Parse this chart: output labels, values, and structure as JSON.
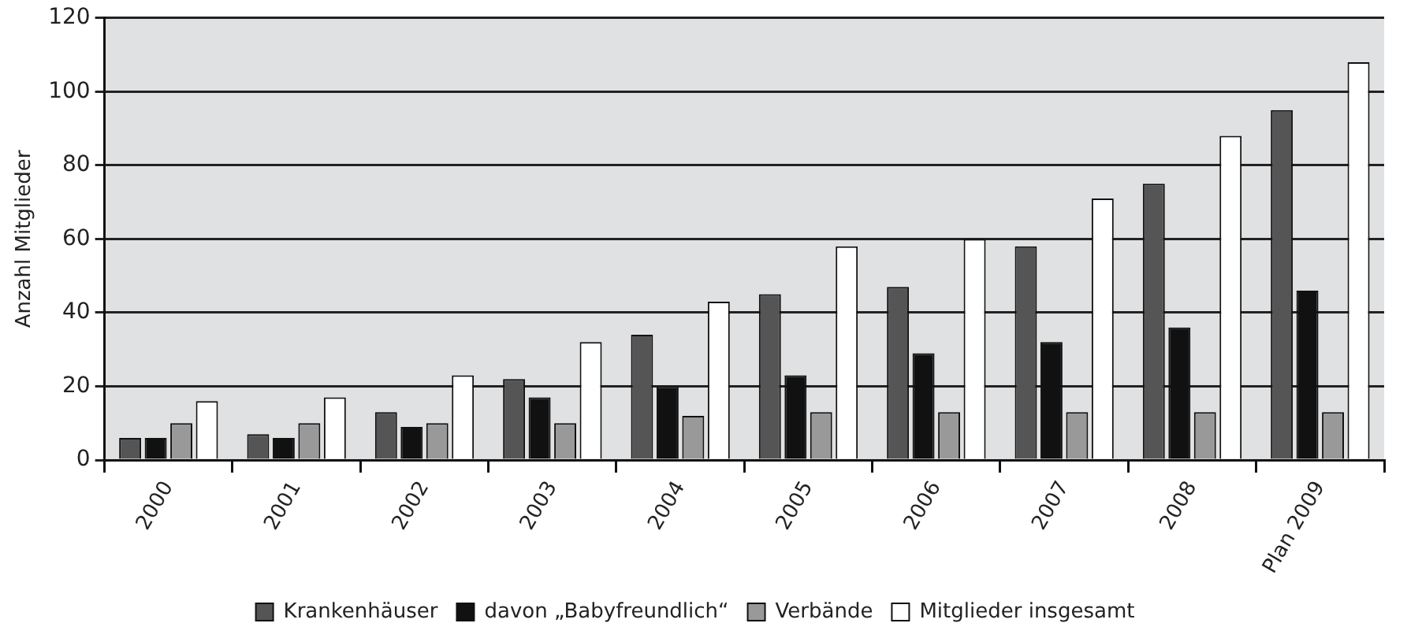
{
  "chart_data": {
    "type": "bar",
    "ylabel": "Anzahl Mitglieder",
    "categories": [
      "2000",
      "2001",
      "2002",
      "2003",
      "2004",
      "2005",
      "2006",
      "2007",
      "2008",
      "Plan 2009"
    ],
    "series": [
      {
        "name": "Krankenhäuser",
        "color": "#555555",
        "values": [
          6,
          7,
          13,
          22,
          34,
          45,
          47,
          58,
          75,
          95
        ]
      },
      {
        "name": "davon „Babyfreundlich“",
        "color": "#111111",
        "values": [
          6,
          6,
          9,
          17,
          20,
          23,
          29,
          32,
          36,
          46
        ]
      },
      {
        "name": "Verbände",
        "color": "#999999",
        "values": [
          10,
          10,
          10,
          10,
          12,
          13,
          13,
          13,
          13,
          13
        ]
      },
      {
        "name": "Mitglieder insgesamt",
        "color": "#ffffff",
        "values": [
          16,
          17,
          23,
          32,
          43,
          58,
          60,
          71,
          88,
          108
        ]
      }
    ],
    "ylim": [
      0,
      120
    ],
    "yticks": [
      0,
      20,
      40,
      60,
      80,
      100,
      120
    ],
    "grid": "y",
    "legend": "bottom"
  }
}
